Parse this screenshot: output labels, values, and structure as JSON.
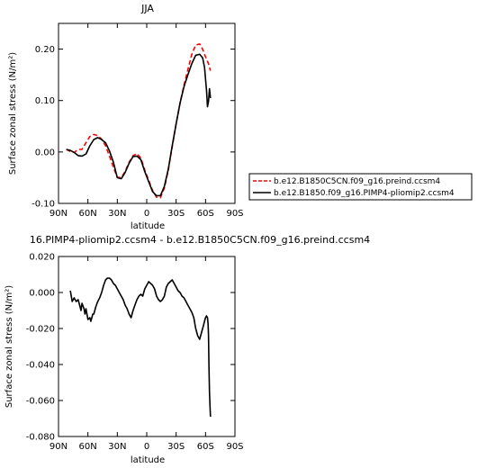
{
  "chart_data": [
    {
      "type": "line",
      "title": "JJA",
      "xlabel": "latitude",
      "ylabel": "Surface zonal stress (N/m²)",
      "xlim": [
        90,
        -90
      ],
      "ylim": [
        -0.1,
        0.25
      ],
      "xticks": [
        {
          "value": 90,
          "label": "90N"
        },
        {
          "value": 60,
          "label": "60N"
        },
        {
          "value": 30,
          "label": "30N"
        },
        {
          "value": 0,
          "label": "0"
        },
        {
          "value": -30,
          "label": "30S"
        },
        {
          "value": -60,
          "label": "60S"
        },
        {
          "value": -90,
          "label": "90S"
        }
      ],
      "yticks": [
        {
          "value": -0.1,
          "label": "-0.10"
        },
        {
          "value": 0.0,
          "label": "0.00"
        },
        {
          "value": 0.1,
          "label": "0.10"
        },
        {
          "value": 0.2,
          "label": "0.20"
        }
      ],
      "legend_position": "right",
      "series": [
        {
          "name": "b.e12.B1850C5CN.f09_g16.preind.ccsm4",
          "color": "#ff0000",
          "dashed": true,
          "x": [
            82,
            78,
            74,
            70,
            66,
            62,
            58,
            54,
            50,
            46,
            42,
            38,
            34,
            30,
            26,
            22,
            18,
            14,
            10,
            6,
            2,
            -2,
            -6,
            -10,
            -14,
            -18,
            -22,
            -26,
            -30,
            -34,
            -38,
            -42,
            -46,
            -50,
            -54,
            -57,
            -60,
            -63,
            -65
          ],
          "y": [
            0.005,
            0.001,
            -0.001,
            0.005,
            0.005,
            0.018,
            0.03,
            0.034,
            0.032,
            0.025,
            0.012,
            -0.008,
            -0.03,
            -0.049,
            -0.05,
            -0.038,
            -0.02,
            -0.007,
            -0.003,
            -0.012,
            -0.035,
            -0.055,
            -0.075,
            -0.088,
            -0.089,
            -0.07,
            -0.035,
            0.01,
            0.055,
            0.095,
            0.13,
            0.16,
            0.19,
            0.208,
            0.21,
            0.2,
            0.185,
            0.172,
            0.158
          ]
        },
        {
          "name": "b.e12.B1850.f09_g16.PIMP4-pliomip2.ccsm4",
          "color": "#000000",
          "dashed": false,
          "x": [
            82,
            78,
            74,
            70,
            66,
            62,
            58,
            54,
            50,
            46,
            42,
            38,
            34,
            30,
            26,
            22,
            18,
            14,
            10,
            6,
            2,
            -2,
            -6,
            -10,
            -14,
            -18,
            -22,
            -26,
            -30,
            -34,
            -38,
            -42,
            -46,
            -50,
            -54,
            -57,
            -59,
            -61,
            -62,
            -63,
            -64,
            -65
          ],
          "y": [
            0.005,
            0.003,
            -0.001,
            -0.007,
            -0.008,
            -0.004,
            0.012,
            0.024,
            0.028,
            0.024,
            0.018,
            0.002,
            -0.02,
            -0.05,
            -0.052,
            -0.04,
            -0.022,
            -0.009,
            -0.008,
            -0.015,
            -0.038,
            -0.058,
            -0.077,
            -0.085,
            -0.085,
            -0.067,
            -0.033,
            0.012,
            0.055,
            0.095,
            0.127,
            0.15,
            0.172,
            0.188,
            0.19,
            0.183,
            0.165,
            0.12,
            0.088,
            0.098,
            0.123,
            0.105
          ]
        }
      ]
    },
    {
      "type": "line",
      "title": "16.PIMP4-pliomip2.ccsm4 - b.e12.B1850C5CN.f09_g16.preind.ccsm4",
      "xlabel": "latitude",
      "ylabel": "Surface zonal stress (N/m²)",
      "xlim": [
        90,
        -90
      ],
      "ylim": [
        -0.08,
        0.02
      ],
      "xticks": [
        {
          "value": 90,
          "label": "90N"
        },
        {
          "value": 60,
          "label": "60N"
        },
        {
          "value": 30,
          "label": "30N"
        },
        {
          "value": 0,
          "label": "0"
        },
        {
          "value": -30,
          "label": "30S"
        },
        {
          "value": -60,
          "label": "60S"
        },
        {
          "value": -90,
          "label": "90S"
        }
      ],
      "yticks": [
        {
          "value": -0.08,
          "label": "-0.080"
        },
        {
          "value": -0.06,
          "label": "-0.060"
        },
        {
          "value": -0.04,
          "label": "-0.040"
        },
        {
          "value": -0.02,
          "label": "-0.020"
        },
        {
          "value": 0.0,
          "label": "0.000"
        },
        {
          "value": 0.02,
          "label": "0.020"
        }
      ],
      "series": [
        {
          "color": "#000000",
          "dashed": false,
          "x": [
            78,
            77,
            76,
            75,
            74,
            72,
            70,
            68,
            67,
            66,
            64,
            63,
            62,
            60,
            58,
            57,
            56,
            55,
            54,
            52,
            50,
            48,
            46,
            44,
            42,
            40,
            38,
            36,
            34,
            32,
            30,
            28,
            26,
            24,
            22,
            20,
            18,
            16,
            14,
            12,
            10,
            8,
            6,
            4,
            2,
            0,
            -2,
            -4,
            -6,
            -8,
            -10,
            -12,
            -14,
            -16,
            -18,
            -20,
            -22,
            -24,
            -26,
            -28,
            -30,
            -32,
            -34,
            -36,
            -38,
            -40,
            -42,
            -44,
            -46,
            -48,
            -50,
            -52,
            -54,
            -56,
            -57,
            -58,
            -59,
            -60,
            -61,
            -62,
            -62.5,
            -63,
            -63.5,
            -64,
            -64.5,
            -65
          ],
          "y": [
            0.001,
            -0.002,
            -0.005,
            -0.004,
            -0.003,
            -0.005,
            -0.004,
            -0.008,
            -0.01,
            -0.006,
            -0.009,
            -0.012,
            -0.009,
            -0.015,
            -0.014,
            -0.016,
            -0.014,
            -0.012,
            -0.012,
            -0.008,
            -0.005,
            -0.003,
            0.0,
            0.004,
            0.007,
            0.008,
            0.008,
            0.007,
            0.005,
            0.004,
            0.002,
            0.0,
            -0.002,
            -0.004,
            -0.007,
            -0.009,
            -0.012,
            -0.014,
            -0.01,
            -0.007,
            -0.004,
            -0.002,
            -0.001,
            -0.002,
            0.002,
            0.004,
            0.006,
            0.005,
            0.004,
            0.002,
            -0.002,
            -0.004,
            -0.005,
            -0.004,
            -0.002,
            0.003,
            0.005,
            0.006,
            0.007,
            0.005,
            0.003,
            0.001,
            0.0,
            -0.002,
            -0.003,
            -0.005,
            -0.007,
            -0.009,
            -0.011,
            -0.014,
            -0.02,
            -0.024,
            -0.026,
            -0.022,
            -0.02,
            -0.018,
            -0.016,
            -0.014,
            -0.013,
            -0.014,
            -0.017,
            -0.023,
            -0.04,
            -0.055,
            -0.062,
            -0.069
          ]
        }
      ]
    }
  ]
}
